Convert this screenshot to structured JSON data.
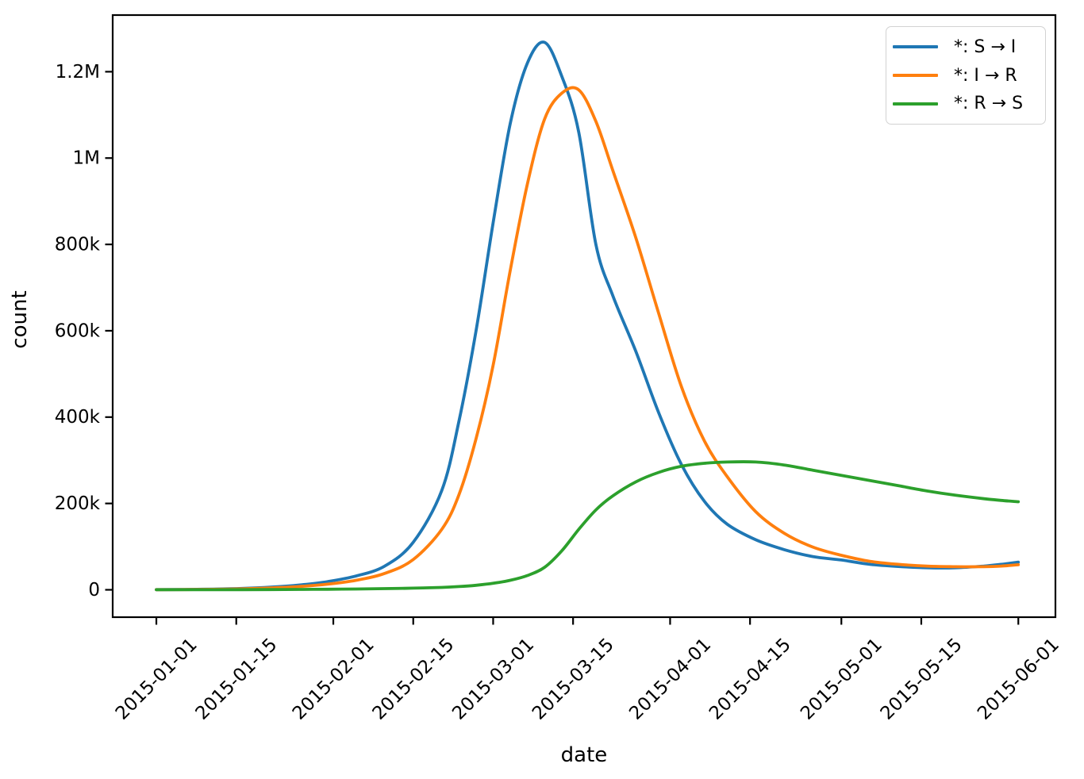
{
  "figure": {
    "background": "#ffffff",
    "text_color": "#000000"
  },
  "chart_data": {
    "type": "line",
    "title": "",
    "xlabel": "date",
    "ylabel": "count",
    "grid": false,
    "legend_position": "upper right",
    "x_unit": "days since 2015-01-01",
    "xlim": [
      -7.65,
      157.5
    ],
    "ylim": [
      -63400,
      1331200
    ],
    "x_tick_rotation": 45,
    "x_ticks": [
      {
        "day": 0,
        "label": "2015-01-01"
      },
      {
        "day": 14,
        "label": "2015-01-15"
      },
      {
        "day": 31,
        "label": "2015-02-01"
      },
      {
        "day": 45,
        "label": "2015-02-15"
      },
      {
        "day": 59,
        "label": "2015-03-01"
      },
      {
        "day": 73,
        "label": "2015-03-15"
      },
      {
        "day": 90,
        "label": "2015-04-01"
      },
      {
        "day": 104,
        "label": "2015-04-15"
      },
      {
        "day": 120,
        "label": "2015-05-01"
      },
      {
        "day": 134,
        "label": "2015-05-15"
      },
      {
        "day": 151,
        "label": "2015-06-01"
      }
    ],
    "y_ticks": [
      {
        "value": 0,
        "label": "0"
      },
      {
        "value": 200000,
        "label": "200k"
      },
      {
        "value": 400000,
        "label": "400k"
      },
      {
        "value": 600000,
        "label": "600k"
      },
      {
        "value": 800000,
        "label": "800k"
      },
      {
        "value": 1000000,
        "label": "1M"
      },
      {
        "value": 1200000,
        "label": "1.2M"
      }
    ],
    "sample_days": [
      0,
      5,
      10,
      15,
      20,
      25,
      30,
      35,
      40,
      45,
      50,
      53,
      56,
      59,
      62,
      65,
      68,
      71,
      74,
      77,
      80,
      84,
      88,
      92,
      96,
      100,
      105,
      110,
      115,
      120,
      125,
      130,
      135,
      140,
      145,
      148,
      151
    ],
    "series": [
      {
        "name": "*: S → I",
        "color": "#1f77b4",
        "peak": {
          "date": "2015-03-09",
          "value": 1268000
        },
        "values": [
          400,
          800,
          1600,
          3200,
          6000,
          11000,
          19000,
          32000,
          55000,
          110000,
          230000,
          390000,
          600000,
          850000,
          1080000,
          1220000,
          1268000,
          1190000,
          1060000,
          800000,
          680000,
          552000,
          410000,
          290000,
          205000,
          152000,
          116000,
          93000,
          77000,
          69000,
          59000,
          54000,
          51000,
          51000,
          55000,
          59000,
          64000
        ]
      },
      {
        "name": "*: I → R",
        "color": "#ff7f0e",
        "peak": {
          "date": "2015-03-14",
          "value": 1160000
        },
        "values": [
          300,
          550,
          1100,
          2200,
          4200,
          7500,
          13000,
          22000,
          38000,
          70000,
          140000,
          220000,
          350000,
          520000,
          740000,
          940000,
          1090000,
          1150000,
          1158000,
          1085000,
          970000,
          815000,
          640000,
          470000,
          345000,
          262000,
          181000,
          131000,
          99000,
          80000,
          66000,
          59000,
          55000,
          53500,
          53500,
          55000,
          58000
        ]
      },
      {
        "name": "*: R → S",
        "color": "#2ca02c",
        "peak": {
          "date": "2015-04-11",
          "value": 297000
        },
        "values": [
          100,
          150,
          250,
          400,
          600,
          900,
          1300,
          1900,
          2700,
          3800,
          5500,
          7500,
          10500,
          15000,
          22000,
          33000,
          52000,
          90000,
          140000,
          185000,
          218000,
          250000,
          272000,
          286000,
          293000,
          296000,
          296000,
          289000,
          277000,
          265000,
          253000,
          241000,
          229000,
          219000,
          211000,
          207000,
          204000
        ]
      }
    ]
  }
}
